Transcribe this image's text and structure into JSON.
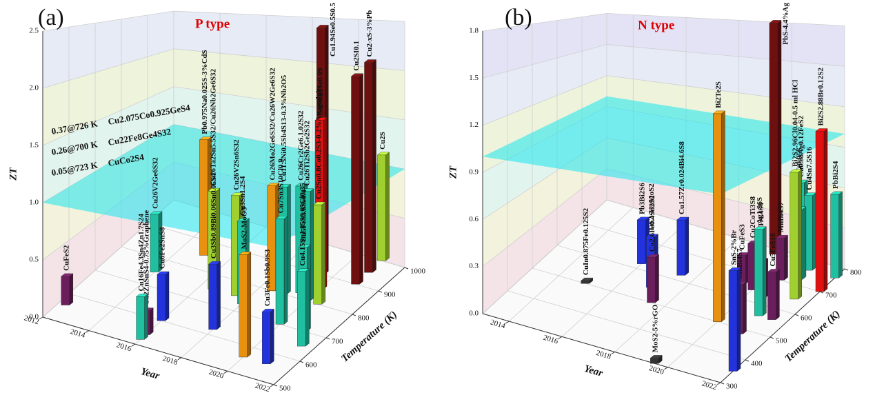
{
  "chart_data": [
    {
      "type": "bar3d",
      "panel": "(a)",
      "title": "P type",
      "x_label": "Year",
      "y_label": "Temperature (K)",
      "z_label": "ZT",
      "xlim": [
        2012,
        2022
      ],
      "xticks": [
        2012,
        2014,
        2016,
        2018,
        2020,
        2022
      ],
      "ylim": [
        500,
        1000
      ],
      "yticks": [
        500,
        600,
        700,
        800,
        900,
        1000
      ],
      "zlim": [
        0,
        2.5
      ],
      "zticks": [
        {
          "value": 0,
          "label": "0.0"
        },
        0.5,
        {
          "value": 1,
          "label": "1.0"
        },
        1.5,
        {
          "value": 2,
          "label": "2.0"
        },
        2.5
      ],
      "reference_zt": 1.0,
      "grid": true,
      "annotations": [
        {
          "text": "0.37@726 K",
          "compound": "Cu2.075Co0.925GeS4"
        },
        {
          "text": "0.26@700 K",
          "compound": "Cu22Fe8Ge4S32"
        },
        {
          "text": "0.05@723 K",
          "compound": "CuCo2S4"
        }
      ],
      "bars": [
        {
          "label": "CuFeS2",
          "year": 2012.3,
          "temperature": 560,
          "zt": 0.26,
          "color": "#6a1f5c"
        },
        {
          "label": "Cu26V2Ge6S32",
          "year": 2014,
          "temperature": 750,
          "zt": 0.58,
          "color": "#1fbf9f"
        },
        {
          "label": "Pb0.975Na0.025S-3%CdS",
          "year": 2015,
          "temperature": 850,
          "zt": 1.23,
          "color": "#e8900f"
        },
        {
          "label": "Cu16Fe4.3Sn4Zn1.7S24",
          "year": 2016,
          "temperature": 520,
          "zt": 0.35,
          "color": "#1fbf9f"
        },
        {
          "label": "Cu2ZnSnS4-0.75%Graphene",
          "year": 2016,
          "temperature": 540,
          "zt": 0.2,
          "color": "#6a1f5c"
        },
        {
          "label": "Cu6Fe2SnS8",
          "year": 2016,
          "temperature": 600,
          "zt": 0.4,
          "color": "#2233dd"
        },
        {
          "label": "Cu26Ta2Sn5.5S32/Cu26Nb2Ge6S32",
          "year": 2016.5,
          "temperature": 750,
          "zt": 0.93,
          "color": "#a0d030"
        },
        {
          "label": "Cu26V2Sn6S32",
          "year": 2017.5,
          "temperature": 750,
          "zt": 0.93,
          "color": "#a0d030"
        },
        {
          "label": "Cu3Sn1.2S4",
          "year": 2018,
          "temperature": 730,
          "zt": 0.75,
          "color": "#1fbf9f"
        },
        {
          "label": "Cu3Sb0.89Bi0.06Sn0.05S4",
          "year": 2018,
          "temperature": 620,
          "zt": 0.55,
          "color": "#2233dd"
        },
        {
          "label": "Cu26Mo2Ge6S32/Cu26W2Ge6S32",
          "year": 2018.5,
          "temperature": 800,
          "zt": 0.99,
          "color": "#e8900f"
        },
        {
          "label": "Cu11.5Ni0.5Sb4S13-0.3%Nb2O5",
          "year": 2019,
          "temperature": 800,
          "zt": 1.0,
          "color": "#1fbf9f"
        },
        {
          "label": "Cu26Cr2Ge6.1.02S32",
          "year": 2019.5,
          "temperature": 820,
          "zt": 1.0,
          "color": "#1fbf9f"
        },
        {
          "label": "Cu1.94Se0.5S0.5",
          "year": 2019.5,
          "temperature": 900,
          "zt": 2.45,
          "color": "#6e1010"
        },
        {
          "label": "SnS0.91Se0.09",
          "year": 2020,
          "temperature": 850,
          "zt": 1.6,
          "color": "#e01010"
        },
        {
          "label": "Cu26Ti2Sb2Ge2S32",
          "year": 2020,
          "temperature": 800,
          "zt": 1.0,
          "color": "#1fbf9f"
        },
        {
          "label": "Cu2Sn0.8Co0.2S3-0.2%Attapulgite",
          "year": 2020.5,
          "temperature": 800,
          "zt": 0.9,
          "color": "#a0d030"
        },
        {
          "label": "Cu2SI0.1",
          "year": 2021,
          "temperature": 900,
          "zt": 2.0,
          "color": "#6e1010"
        },
        {
          "label": "Cu2-xS-3%Pb",
          "year": 2021,
          "temperature": 950,
          "zt": 2.1,
          "color": "#6e1010"
        },
        {
          "label": "Cu2S",
          "year": 2021,
          "temperature": 1000,
          "zt": 1.1,
          "color": "#a0d030"
        },
        {
          "label": "Cu7Sn3S10Cl0.9",
          "year": 2020,
          "temperature": 700,
          "zt": 0.9,
          "color": "#1fbf9f"
        },
        {
          "label": "Cu5FeS3.6Se0.4",
          "year": 2021,
          "temperature": 700,
          "zt": 0.7,
          "color": "#1fbf9f"
        },
        {
          "label": "Cu4.15Sn1.85S6.65Cl0.35",
          "year": 2021.5,
          "temperature": 650,
          "zt": 0.6,
          "color": "#1fbf9f"
        },
        {
          "label": "MoS2-MoO3",
          "year": 2020,
          "temperature": 560,
          "zt": 0.8,
          "color": "#e8900f"
        },
        {
          "label": "Cu3Fe0.1Sb0.9S3",
          "year": 2021,
          "temperature": 560,
          "zt": 0.4,
          "color": "#2233dd"
        }
      ]
    },
    {
      "type": "bar3d",
      "panel": "(b)",
      "title": "N type",
      "x_label": "Year",
      "y_label": "Temperature (K)",
      "z_label": "ZT",
      "xlim": [
        2013,
        2022
      ],
      "xticks": [
        2014,
        2016,
        2018,
        2020,
        2022
      ],
      "ylim": [
        300,
        800
      ],
      "yticks": [
        300,
        400,
        500,
        600,
        700,
        800
      ],
      "zlim": [
        0,
        1.8
      ],
      "zticks": [
        {
          "value": 0,
          "label": "0.0"
        },
        0.3,
        0.6,
        0.9,
        1.2,
        1.5,
        1.8
      ],
      "reference_zt": 1.0,
      "grid": true,
      "bars": [
        {
          "label": "CuIn0.875Fe0.125S2",
          "year": 2015,
          "temperature": 500,
          "zt": 0.02,
          "color": "#333333"
        },
        {
          "label": "Pb3Bi2S6",
          "year": 2016,
          "temperature": 620,
          "zt": 0.33,
          "color": "#2233dd"
        },
        {
          "label": "TiS2-3%MoS2",
          "year": 2017,
          "temperature": 550,
          "zt": 0.35,
          "color": "#2233dd"
        },
        {
          "label": "Co2.6Fe0.4Sn2S2",
          "year": 2017.5,
          "temperature": 500,
          "zt": 0.3,
          "color": "#6a1f5c"
        },
        {
          "label": "Cu1.57Zr0.024Bi4.6S8",
          "year": 2017.5,
          "temperature": 620,
          "zt": 0.4,
          "color": "#2233dd"
        },
        {
          "label": "MoS2-5%rGO",
          "year": 2019.5,
          "temperature": 300,
          "zt": 0.03,
          "color": "#333333"
        },
        {
          "label": "CuFeS3",
          "year": 2019.5,
          "temperature": 650,
          "zt": 0.2,
          "color": "#6a1f5c"
        },
        {
          "label": "Bi2Te2S",
          "year": 2020,
          "temperature": 500,
          "zt": 1.3,
          "color": "#e8900f"
        },
        {
          "label": "PbS-4.4%Ag",
          "year": 2019.5,
          "temperature": 780,
          "zt": 1.8,
          "color": "#6e1010"
        },
        {
          "label": "Cu2CoTi3S8",
          "year": 2020,
          "temperature": 640,
          "zt": 0.32,
          "color": "#6a1f5c"
        },
        {
          "label": "CuCo0.6Ti1.4S4",
          "year": 2020.5,
          "temperature": 620,
          "zt": 0.25,
          "color": "#6a1f5c"
        },
        {
          "label": "MnBi4S7",
          "year": 2020.5,
          "temperature": 700,
          "zt": 0.3,
          "color": "#6a1f5c"
        },
        {
          "label": "MnBi4S7",
          "year": 2021,
          "temperature": 480,
          "zt": 0.3,
          "color": "#6a1f5c"
        },
        {
          "label": "Cu0.88Ag0.12FeS2",
          "year": 2020.5,
          "temperature": 780,
          "zt": 0.6,
          "color": "#1fbf9f"
        },
        {
          "label": "Cu4Sn7.5S16",
          "year": 2021,
          "temperature": 760,
          "zt": 0.55,
          "color": "#1fbf9f"
        },
        {
          "label": "CoSb0.95Te0.05S",
          "year": 2021,
          "temperature": 720,
          "zt": 0.5,
          "color": "#1fbf9f"
        },
        {
          "label": "Ag1.96S",
          "year": 2021,
          "temperature": 560,
          "zt": 0.55,
          "color": "#1fbf9f"
        },
        {
          "label": "Cu5FeS16",
          "year": 2021.5,
          "temperature": 560,
          "zt": 0.3,
          "color": "#6a1f5c"
        },
        {
          "label": "Bi2S2.96Cl0.04-0.5 ml HCl",
          "year": 2021.5,
          "temperature": 650,
          "zt": 0.85,
          "color": "#a0d030"
        },
        {
          "label": "Bi2S2.88Br0.12S2",
          "year": 2022,
          "temperature": 700,
          "zt": 1.1,
          "color": "#e01010"
        },
        {
          "label": "PbBi2S4",
          "year": 2022,
          "temperature": 760,
          "zt": 0.6,
          "color": "#1fbf9f"
        },
        {
          "label": "SnS-2%Br",
          "year": 2022,
          "temperature": 350,
          "zt": 0.55,
          "color": "#2233dd"
        }
      ]
    }
  ]
}
